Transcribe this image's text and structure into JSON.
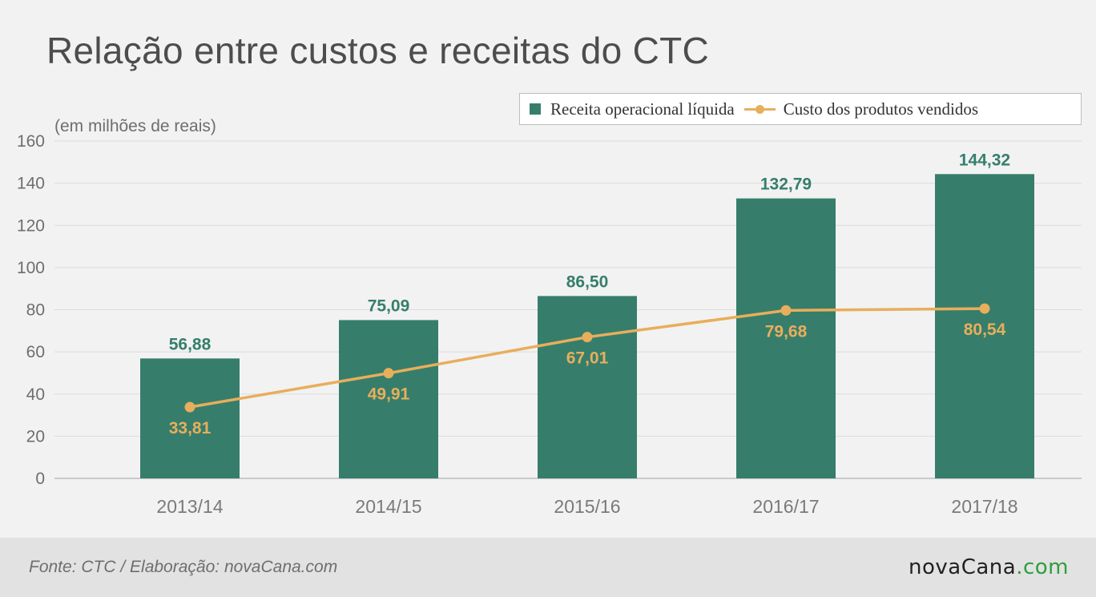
{
  "chart_data": {
    "type": "bar",
    "title": "Relação entre custos e receitas do CTC",
    "unit_note": "(em milhões de reais)",
    "categories": [
      "2013/14",
      "2014/15",
      "2015/16",
      "2016/17",
      "2017/18"
    ],
    "ylim": [
      0,
      160
    ],
    "yticks": [
      0,
      20,
      40,
      60,
      80,
      100,
      120,
      140,
      160
    ],
    "grid": true,
    "legend_position": "top-right",
    "series": [
      {
        "name": "Receita operacional líquida",
        "type": "bar",
        "color": "#367e6b",
        "values": [
          56.88,
          75.09,
          86.5,
          132.79,
          144.32
        ],
        "labels": [
          "56,88",
          "75,09",
          "86,50",
          "132,79",
          "144,32"
        ]
      },
      {
        "name": "Custo dos produtos vendidos",
        "type": "line",
        "color": "#e8ae5c",
        "values": [
          33.81,
          49.91,
          67.01,
          79.68,
          80.54
        ],
        "labels": [
          "33,81",
          "49,91",
          "67,01",
          "79,68",
          "80,54"
        ]
      }
    ]
  },
  "footer": {
    "source": "Fonte: CTC / Elaboração: novaCana.com",
    "brand_name": "novaCana",
    "brand_domain": ".com"
  }
}
